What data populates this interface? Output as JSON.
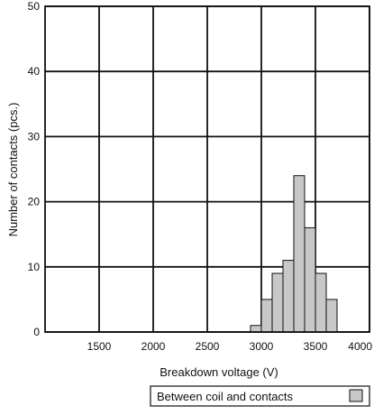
{
  "chart_data": {
    "type": "bar",
    "title": "",
    "xlabel": "Breakdown voltage (V)",
    "ylabel": "Number of contacts (pcs.)",
    "xlim": [
      1000,
      4000
    ],
    "ylim": [
      0,
      50
    ],
    "x_ticks": [
      1500,
      2000,
      2500,
      3000,
      3500,
      4000
    ],
    "y_ticks": [
      0,
      10,
      20,
      30,
      40,
      50
    ],
    "x_tick_labels": [
      "1500",
      "2000",
      "2500",
      "3000",
      "3500",
      "4000"
    ],
    "y_tick_labels": [
      "0",
      "10",
      "20",
      "30",
      "40",
      "50"
    ],
    "grid": true,
    "bin_width": 100,
    "series": [
      {
        "name": "Between coil and contacts",
        "color": "#c8c8c8",
        "bins": [
          {
            "x": 2950,
            "y": 1
          },
          {
            "x": 3050,
            "y": 5
          },
          {
            "x": 3150,
            "y": 9
          },
          {
            "x": 3250,
            "y": 11
          },
          {
            "x": 3350,
            "y": 24
          },
          {
            "x": 3450,
            "y": 16
          },
          {
            "x": 3550,
            "y": 9
          },
          {
            "x": 3650,
            "y": 5
          }
        ]
      }
    ],
    "legend": {
      "position": "bottom-right",
      "label": "Between coil and contacts"
    }
  }
}
